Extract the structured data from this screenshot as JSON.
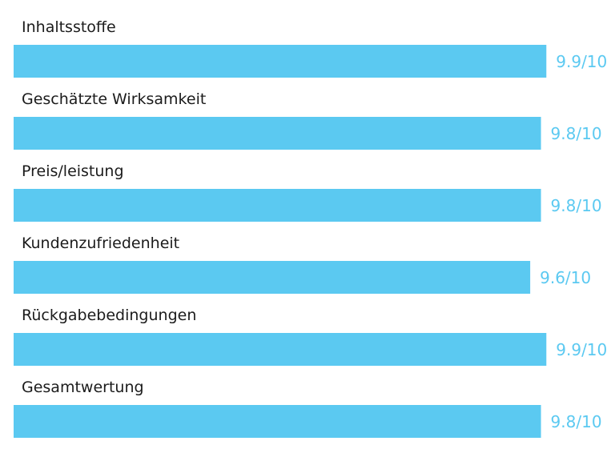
{
  "colors": {
    "bar": "#5bc9f1",
    "value_text": "#5bc9f1",
    "label_text": "#1b1b1b",
    "background": "#ffffff"
  },
  "chart_data": {
    "type": "bar",
    "orientation": "horizontal",
    "categories": [
      "Inhaltsstoffe",
      "Geschätzte Wirksamkeit",
      "Preis/leistung",
      "Kundenzufriedenheit",
      "Rückgabebedingungen",
      "Gesamtwertung"
    ],
    "values": [
      9.9,
      9.8,
      9.8,
      9.6,
      9.9,
      9.8
    ],
    "value_labels": [
      "9.9/10",
      "9.8/10",
      "9.8/10",
      "9.6/10",
      "9.9/10",
      "9.8/10"
    ],
    "xlim": [
      0,
      10
    ],
    "grid": false
  }
}
